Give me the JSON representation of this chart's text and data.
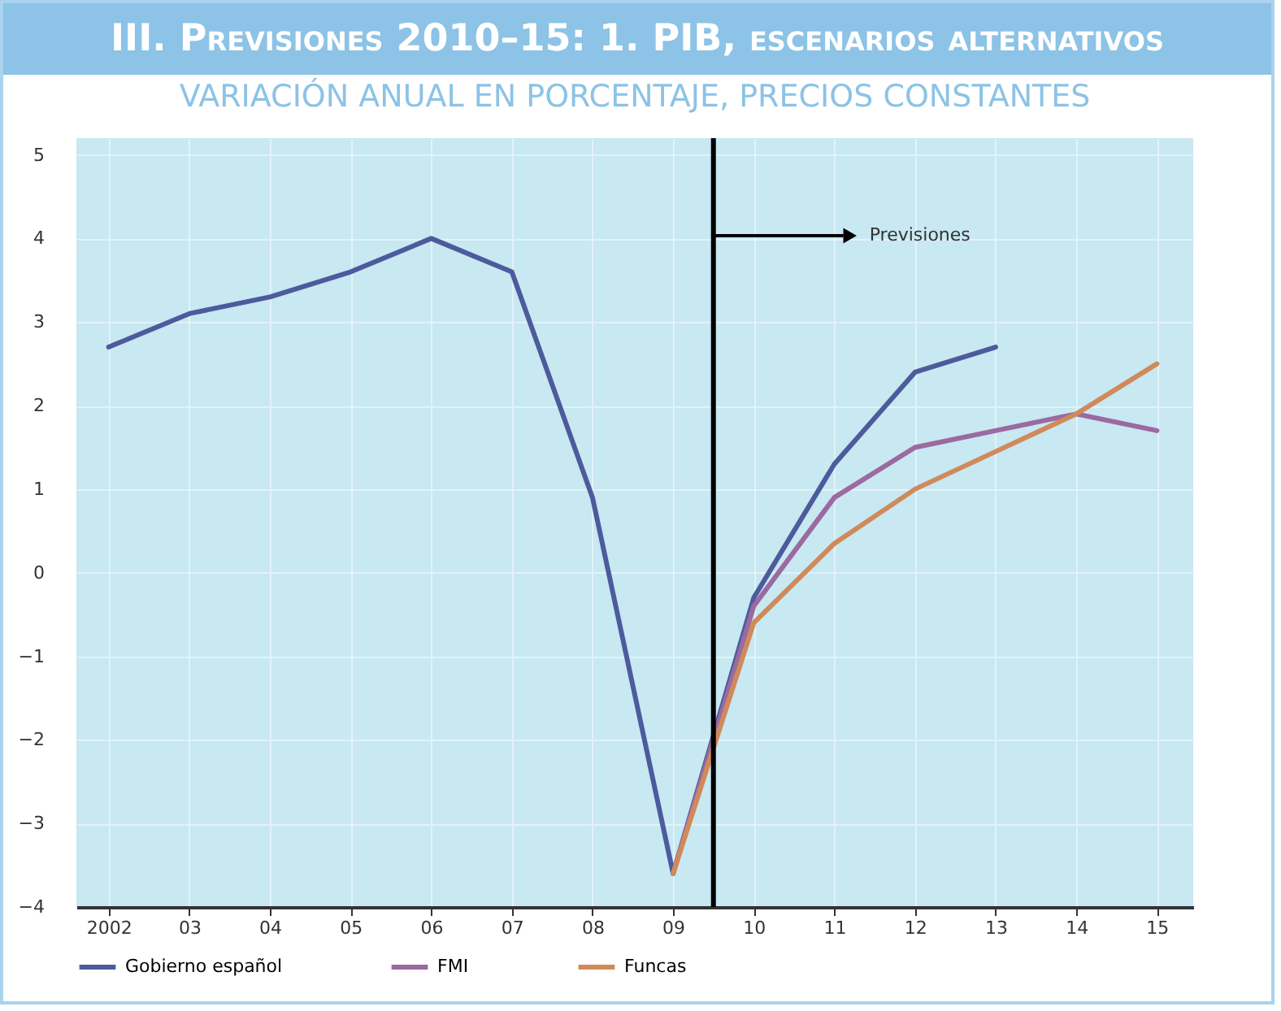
{
  "chart_data": {
    "type": "line",
    "title": "III. Previsiones 2010–15: 1. PIB, escenarios alternativos",
    "subtitle": "VARIACIÓN ANUAL EN PORCENTAJE, PRECIOS CONSTANTES",
    "x": [
      2002,
      2003,
      2004,
      2005,
      2006,
      2007,
      2008,
      2009,
      2010,
      2011,
      2012,
      2013,
      2014,
      2015
    ],
    "series": [
      {
        "name": "Gobierno español",
        "color": "#4d5b9c",
        "values": [
          2.7,
          3.1,
          3.3,
          3.6,
          4.0,
          3.6,
          0.9,
          -3.6,
          -0.3,
          1.3,
          2.4,
          2.7,
          null,
          null
        ]
      },
      {
        "name": "FMI",
        "color": "#9a6aa0",
        "values": [
          null,
          null,
          null,
          null,
          null,
          null,
          null,
          -3.6,
          -0.4,
          0.9,
          1.5,
          1.7,
          1.9,
          1.7
        ]
      },
      {
        "name": "Funcas",
        "color": "#d08a5a",
        "values": [
          null,
          null,
          null,
          null,
          null,
          null,
          null,
          -3.6,
          -0.6,
          0.35,
          1.0,
          1.45,
          1.9,
          2.5
        ]
      }
    ],
    "xlim": [
      2001.6,
      2015.45
    ],
    "xticks": [
      {
        "value": 2002,
        "label": "2002"
      },
      {
        "value": 2003,
        "label": "03"
      },
      {
        "value": 2004,
        "label": "04"
      },
      {
        "value": 2005,
        "label": "05"
      },
      {
        "value": 2006,
        "label": "06"
      },
      {
        "value": 2007,
        "label": "07"
      },
      {
        "value": 2008,
        "label": "08"
      },
      {
        "value": 2009,
        "label": "09"
      },
      {
        "value": 2010,
        "label": "10"
      },
      {
        "value": 2011,
        "label": "11"
      },
      {
        "value": 2012,
        "label": "12"
      },
      {
        "value": 2013,
        "label": "13"
      },
      {
        "value": 2014,
        "label": "14"
      },
      {
        "value": 2015,
        "label": "15"
      }
    ],
    "ylim": [
      -4,
      5.2
    ],
    "yticks": [
      -4,
      -3,
      -2,
      -1,
      0,
      1,
      2,
      3,
      4,
      5
    ],
    "ref_lines": [
      {
        "axis": "x",
        "value": 2009.5,
        "color": "#000000"
      }
    ],
    "annotations": [
      "Previsiones"
    ],
    "grid": true,
    "legend": "bottom",
    "line_style": "solid"
  }
}
